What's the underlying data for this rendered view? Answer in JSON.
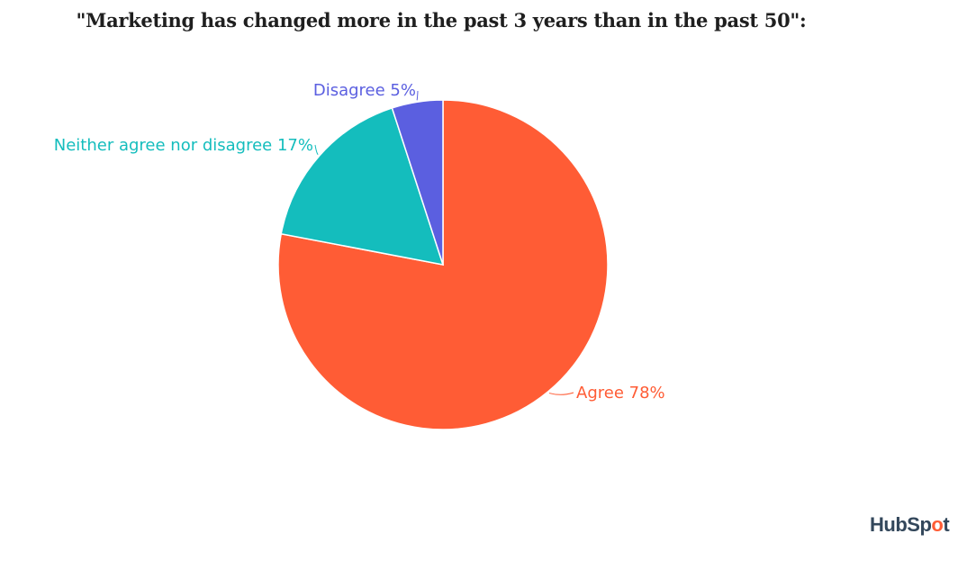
{
  "chart_data": {
    "type": "pie",
    "title": "\"Marketing has changed more in the past 3 years than in the past 50\":",
    "slices": [
      {
        "label": "Agree",
        "value": 78,
        "color": "#ff5c35",
        "text": "Agree 78%"
      },
      {
        "label": "Neither agree nor disagree",
        "value": 17,
        "color": "#14bdbd",
        "text": "Neither agree nor disagree 17%"
      },
      {
        "label": "Disagree",
        "value": 5,
        "color": "#5b5fe0",
        "text": "Disagree 5%"
      }
    ]
  },
  "brand": {
    "name": "HubSpot",
    "color": "#ff5c35"
  }
}
